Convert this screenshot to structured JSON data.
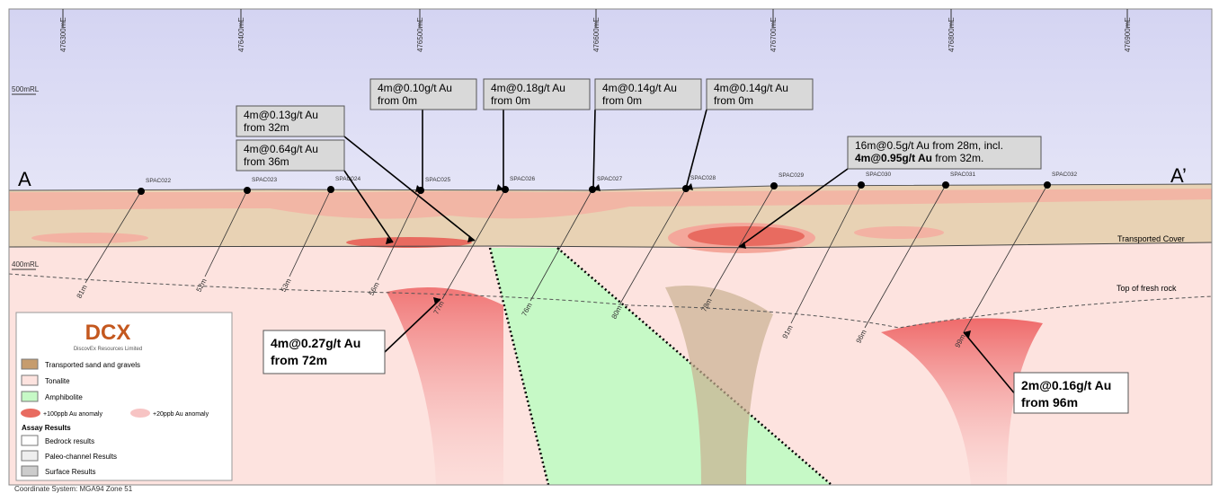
{
  "eastings": [
    "476300mE",
    "476400mE",
    "476500mE",
    "476600mE",
    "476700mE",
    "476800mE",
    "476900mE"
  ],
  "elevations": [
    "500mRL",
    "400mRL"
  ],
  "section_labels": [
    "A",
    "A’"
  ],
  "drillholes": [
    {
      "id": "SPAC022",
      "depth": "81m"
    },
    {
      "id": "SPAC023",
      "depth": "52m"
    },
    {
      "id": "SPAC024",
      "depth": "53m"
    },
    {
      "id": "SPAC025",
      "depth": "56m"
    },
    {
      "id": "SPAC026",
      "depth": "77m"
    },
    {
      "id": "SPAC027",
      "depth": "76m"
    },
    {
      "id": "SPAC028",
      "depth": "80m"
    },
    {
      "id": "SPAC029",
      "depth": "78m"
    },
    {
      "id": "SPAC030",
      "depth": "91m"
    },
    {
      "id": "SPAC031",
      "depth": "96m"
    },
    {
      "id": "SPAC032",
      "depth": "99m"
    }
  ],
  "callouts": [
    {
      "line1": "4m@0.13g/t Au",
      "line2": "from 32m"
    },
    {
      "line1": "4m@0.64g/t Au",
      "line2": "from 36m"
    },
    {
      "line1": "4m@0.10g/t Au",
      "line2": "from 0m"
    },
    {
      "line1": "4m@0.18g/t Au",
      "line2": "from 0m"
    },
    {
      "line1": "4m@0.14g/t Au",
      "line2": "from 0m"
    },
    {
      "line1": "4m@0.14g/t Au",
      "line2": "from 0m"
    },
    {
      "line1": "16m@0.5g/t Au from 28m, incl.",
      "line2_bold": "4m@0.95g/t Au",
      "line2": " from 32m."
    },
    {
      "line1": "4m@0.27g/t Au",
      "line2": "from 72m"
    },
    {
      "line1": "2m@0.16g/t Au",
      "line2": "from 96m"
    }
  ],
  "units": {
    "transported_cover": "Transported Cover",
    "top_fresh_rock": "Top of fresh rock"
  },
  "legend": {
    "logo": "DCX",
    "company": "DiscovEx Resources Limited",
    "items": [
      "Transported sand and gravels",
      "Tonalite",
      "Amphibolite",
      "+100ppb Au anomaly",
      "+20ppb Au anomaly"
    ],
    "assay_title": "Assay Results",
    "assay_items": [
      "Bedrock results",
      "Paleo-channel Results",
      "Surface Results"
    ]
  },
  "footer": "Coordinate System: MGA94 Zone 51"
}
